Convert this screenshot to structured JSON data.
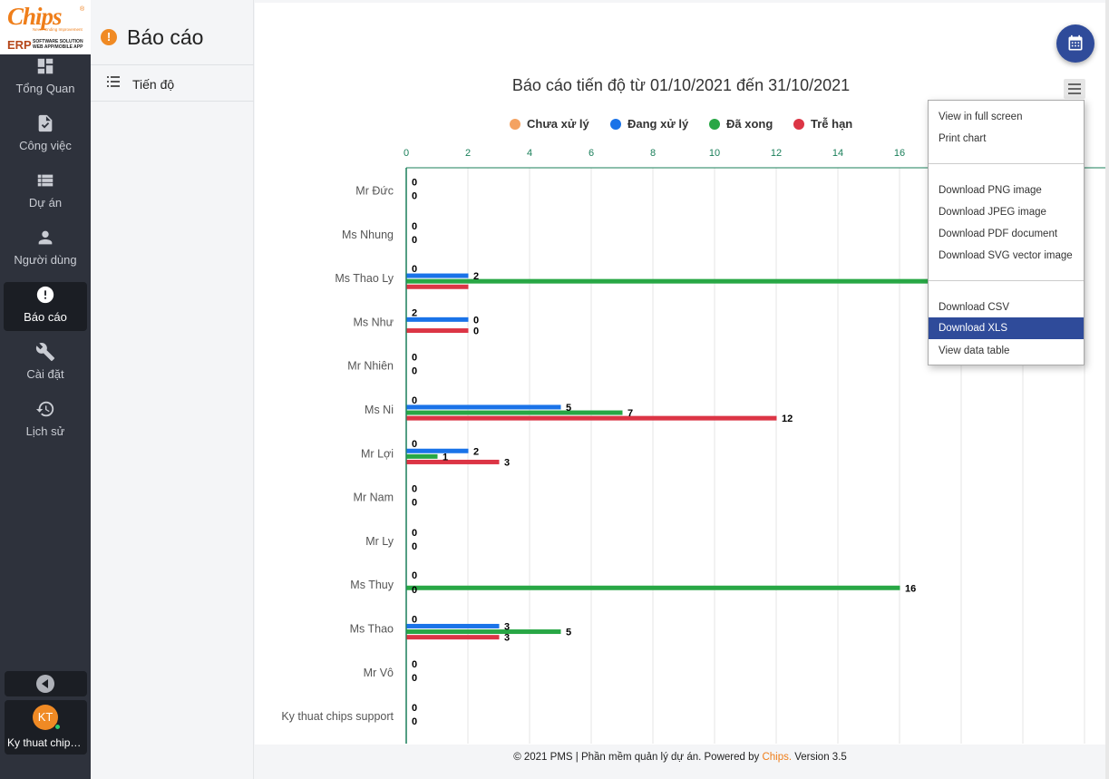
{
  "logo": {
    "brand": "Chips",
    "tagline": "Never Ending Improvement",
    "erp": "ERP",
    "sub_line1": "SOFTWARE SOLUTION",
    "sub_line2": "WEB APP/MOBILE APP"
  },
  "sidebar": {
    "items": [
      {
        "label": "Tổng Quan",
        "icon": "dashboard-icon"
      },
      {
        "label": "Công việc",
        "icon": "task-check-icon"
      },
      {
        "label": "Dự án",
        "icon": "list-icon"
      },
      {
        "label": "Người dùng",
        "icon": "person-icon"
      },
      {
        "label": "Báo cáo",
        "icon": "alert-circle-icon",
        "active": true
      },
      {
        "label": "Cài đặt",
        "icon": "wrench-icon"
      },
      {
        "label": "Lịch sử",
        "icon": "history-icon"
      }
    ],
    "user": {
      "initials": "KT",
      "name": "Ky thuat chips support"
    }
  },
  "subpanel": {
    "title": "Báo cáo",
    "items": [
      {
        "label": "Tiến độ"
      }
    ]
  },
  "export_menu": {
    "items": [
      "View in full screen",
      "Print chart",
      "Download PNG image",
      "Download JPEG image",
      "Download PDF document",
      "Download SVG vector image",
      "Download CSV",
      "Download XLS",
      "View data table"
    ],
    "highlighted": "Download XLS"
  },
  "footer": {
    "text": "© 2021 PMS | Phần mềm quản lý dự án. Powered by ",
    "brand": "Chips.",
    "version": " Version 3.5"
  },
  "colors": {
    "sidebar_bg": "#2e323c",
    "accent": "#ef7e1a",
    "primary": "#2f4b9a"
  },
  "chart_data": {
    "type": "bar",
    "orientation": "horizontal",
    "title": "Báo cáo tiến độ từ 01/10/2021 đến 31/10/2021",
    "x_axis_position": "top",
    "xlim": [
      0,
      20
    ],
    "xticks": [
      0,
      2,
      4,
      6,
      8,
      10,
      12,
      14,
      16
    ],
    "grid": true,
    "legend_position": "top",
    "categories": [
      "Mr Đức",
      "Ms Nhung",
      "Ms Thao Ly",
      "Ms Như",
      "Mr Nhiên",
      "Ms Ni",
      "Mr Lợi",
      "Mr Nam",
      "Mr Ly",
      "Ms Thuy",
      "Ms Thao",
      "Mr Vô",
      "Ky thuat chips support"
    ],
    "series": [
      {
        "name": "Chưa xử lý",
        "color": "#f4a261",
        "values": [
          0,
          0,
          0,
          0,
          0,
          0,
          0,
          0,
          0,
          0,
          0,
          0,
          0
        ]
      },
      {
        "name": "Đang xử lý",
        "color": "#1a73e8",
        "values": [
          0,
          0,
          2,
          2,
          0,
          5,
          2,
          0,
          0,
          0,
          3,
          0,
          0
        ]
      },
      {
        "name": "Đã xong",
        "color": "#28a745",
        "values": [
          0,
          0,
          17,
          0,
          0,
          7,
          1,
          0,
          0,
          16,
          5,
          0,
          0
        ]
      },
      {
        "name": "Trễ hạn",
        "color": "#dc3545",
        "values": [
          0,
          0,
          2,
          2,
          0,
          12,
          3,
          0,
          0,
          0,
          3,
          0,
          0
        ]
      }
    ],
    "visible_data_labels": [
      [
        "0",
        "0"
      ],
      [
        "0",
        "0"
      ],
      [
        "0",
        "2",
        "2"
      ],
      [
        "2",
        "0",
        "0"
      ],
      [
        "0",
        "0"
      ],
      [
        "0",
        "5",
        "7",
        "12"
      ],
      [
        "0",
        "2",
        "1",
        "3"
      ],
      [
        "0",
        "0"
      ],
      [
        "0",
        "0"
      ],
      [
        "0",
        "16",
        "0"
      ],
      [
        "0",
        "3",
        "5",
        "3"
      ],
      [
        "0",
        "0"
      ],
      [
        "0",
        "0"
      ]
    ]
  }
}
